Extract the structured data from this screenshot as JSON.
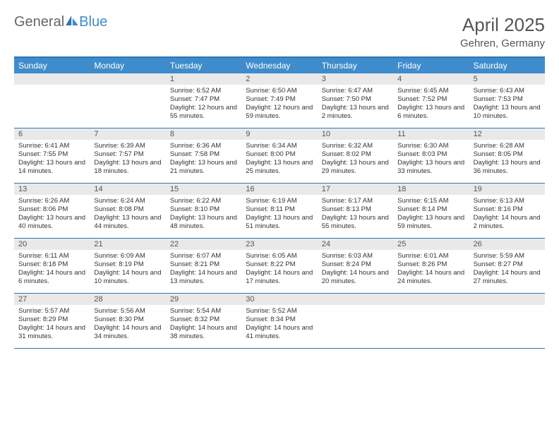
{
  "brand": {
    "part1": "General",
    "part2": "Blue"
  },
  "title": "April 2025",
  "location": "Gehren, Germany",
  "colors": {
    "header_bg": "#3e8ccc",
    "border": "#2d76b5",
    "daynum_bg": "#e9e9e9",
    "text": "#333333",
    "muted": "#555555",
    "white": "#ffffff"
  },
  "day_names": [
    "Sunday",
    "Monday",
    "Tuesday",
    "Wednesday",
    "Thursday",
    "Friday",
    "Saturday"
  ],
  "weeks": [
    [
      null,
      null,
      {
        "n": "1",
        "sr": "6:52 AM",
        "ss": "7:47 PM",
        "dl": "12 hours and 55 minutes."
      },
      {
        "n": "2",
        "sr": "6:50 AM",
        "ss": "7:49 PM",
        "dl": "12 hours and 59 minutes."
      },
      {
        "n": "3",
        "sr": "6:47 AM",
        "ss": "7:50 PM",
        "dl": "13 hours and 2 minutes."
      },
      {
        "n": "4",
        "sr": "6:45 AM",
        "ss": "7:52 PM",
        "dl": "13 hours and 6 minutes."
      },
      {
        "n": "5",
        "sr": "6:43 AM",
        "ss": "7:53 PM",
        "dl": "13 hours and 10 minutes."
      }
    ],
    [
      {
        "n": "6",
        "sr": "6:41 AM",
        "ss": "7:55 PM",
        "dl": "13 hours and 14 minutes."
      },
      {
        "n": "7",
        "sr": "6:39 AM",
        "ss": "7:57 PM",
        "dl": "13 hours and 18 minutes."
      },
      {
        "n": "8",
        "sr": "6:36 AM",
        "ss": "7:58 PM",
        "dl": "13 hours and 21 minutes."
      },
      {
        "n": "9",
        "sr": "6:34 AM",
        "ss": "8:00 PM",
        "dl": "13 hours and 25 minutes."
      },
      {
        "n": "10",
        "sr": "6:32 AM",
        "ss": "8:02 PM",
        "dl": "13 hours and 29 minutes."
      },
      {
        "n": "11",
        "sr": "6:30 AM",
        "ss": "8:03 PM",
        "dl": "13 hours and 33 minutes."
      },
      {
        "n": "12",
        "sr": "6:28 AM",
        "ss": "8:05 PM",
        "dl": "13 hours and 36 minutes."
      }
    ],
    [
      {
        "n": "13",
        "sr": "6:26 AM",
        "ss": "8:06 PM",
        "dl": "13 hours and 40 minutes."
      },
      {
        "n": "14",
        "sr": "6:24 AM",
        "ss": "8:08 PM",
        "dl": "13 hours and 44 minutes."
      },
      {
        "n": "15",
        "sr": "6:22 AM",
        "ss": "8:10 PM",
        "dl": "13 hours and 48 minutes."
      },
      {
        "n": "16",
        "sr": "6:19 AM",
        "ss": "8:11 PM",
        "dl": "13 hours and 51 minutes."
      },
      {
        "n": "17",
        "sr": "6:17 AM",
        "ss": "8:13 PM",
        "dl": "13 hours and 55 minutes."
      },
      {
        "n": "18",
        "sr": "6:15 AM",
        "ss": "8:14 PM",
        "dl": "13 hours and 59 minutes."
      },
      {
        "n": "19",
        "sr": "6:13 AM",
        "ss": "8:16 PM",
        "dl": "14 hours and 2 minutes."
      }
    ],
    [
      {
        "n": "20",
        "sr": "6:11 AM",
        "ss": "8:18 PM",
        "dl": "14 hours and 6 minutes."
      },
      {
        "n": "21",
        "sr": "6:09 AM",
        "ss": "8:19 PM",
        "dl": "14 hours and 10 minutes."
      },
      {
        "n": "22",
        "sr": "6:07 AM",
        "ss": "8:21 PM",
        "dl": "14 hours and 13 minutes."
      },
      {
        "n": "23",
        "sr": "6:05 AM",
        "ss": "8:22 PM",
        "dl": "14 hours and 17 minutes."
      },
      {
        "n": "24",
        "sr": "6:03 AM",
        "ss": "8:24 PM",
        "dl": "14 hours and 20 minutes."
      },
      {
        "n": "25",
        "sr": "6:01 AM",
        "ss": "8:26 PM",
        "dl": "14 hours and 24 minutes."
      },
      {
        "n": "26",
        "sr": "5:59 AM",
        "ss": "8:27 PM",
        "dl": "14 hours and 27 minutes."
      }
    ],
    [
      {
        "n": "27",
        "sr": "5:57 AM",
        "ss": "8:29 PM",
        "dl": "14 hours and 31 minutes."
      },
      {
        "n": "28",
        "sr": "5:56 AM",
        "ss": "8:30 PM",
        "dl": "14 hours and 34 minutes."
      },
      {
        "n": "29",
        "sr": "5:54 AM",
        "ss": "8:32 PM",
        "dl": "14 hours and 38 minutes."
      },
      {
        "n": "30",
        "sr": "5:52 AM",
        "ss": "8:34 PM",
        "dl": "14 hours and 41 minutes."
      },
      null,
      null,
      null
    ]
  ],
  "labels": {
    "sunrise": "Sunrise: ",
    "sunset": "Sunset: ",
    "daylight": "Daylight: "
  }
}
